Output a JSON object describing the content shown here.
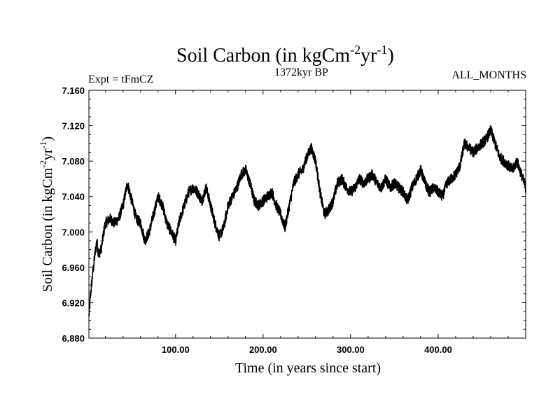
{
  "chart_data": {
    "type": "line",
    "title_main": "Soil Carbon (in kgCm",
    "title_sup1": "-2",
    "title_mid": "yr",
    "title_sup2": "-1",
    "title_end": ")",
    "subtitle": "1372kyr BP",
    "left_label": "Expt = tFmCZ",
    "right_label": "ALL_MONTHS",
    "xlabel": "Time (in years since start)",
    "ylabel_main": "Soil Carbon (in kgCm",
    "ylabel_sup1": "-2",
    "ylabel_mid": "yr",
    "ylabel_sup2": "-1",
    "ylabel_end": ")",
    "xlim": [
      1,
      500
    ],
    "ylim": [
      6.88,
      7.16
    ],
    "x_ticks": [
      100,
      200,
      300,
      400
    ],
    "x_tick_labels": [
      "100.00",
      "200.00",
      "300.00",
      "400.00"
    ],
    "y_ticks": [
      6.88,
      6.92,
      6.96,
      7.0,
      7.04,
      7.08,
      7.12,
      7.16
    ],
    "y_tick_labels": [
      "6.880",
      "6.920",
      "6.960",
      "7.000",
      "7.040",
      "7.080",
      "7.120",
      "7.160"
    ],
    "grid": false,
    "series": [
      {
        "name": "Soil Carbon",
        "color": "#000000",
        "x": [
          1,
          3,
          5,
          8,
          10,
          12,
          15,
          18,
          20,
          25,
          30,
          35,
          40,
          45,
          50,
          55,
          60,
          65,
          70,
          75,
          80,
          85,
          90,
          95,
          100,
          105,
          110,
          115,
          120,
          125,
          130,
          135,
          140,
          145,
          150,
          155,
          160,
          165,
          170,
          175,
          180,
          185,
          190,
          195,
          200,
          205,
          210,
          215,
          220,
          225,
          230,
          235,
          240,
          245,
          250,
          255,
          260,
          265,
          270,
          275,
          280,
          285,
          290,
          295,
          300,
          305,
          310,
          315,
          320,
          325,
          330,
          335,
          340,
          345,
          350,
          355,
          360,
          365,
          370,
          375,
          380,
          385,
          390,
          395,
          400,
          405,
          410,
          415,
          420,
          425,
          430,
          435,
          440,
          445,
          450,
          455,
          460,
          465,
          470,
          475,
          480,
          485,
          490,
          495,
          500
        ],
        "values": [
          6.905,
          6.93,
          6.95,
          6.975,
          6.99,
          6.975,
          6.98,
          7.0,
          7.01,
          7.015,
          7.01,
          7.015,
          7.03,
          7.055,
          7.035,
          7.015,
          7.01,
          6.99,
          7.0,
          7.02,
          7.04,
          7.03,
          7.01,
          7.0,
          6.99,
          7.015,
          7.03,
          7.045,
          7.05,
          7.045,
          7.035,
          7.05,
          7.03,
          7.01,
          6.995,
          7.005,
          7.03,
          7.04,
          7.05,
          7.065,
          7.07,
          7.055,
          7.035,
          7.03,
          7.035,
          7.04,
          7.045,
          7.03,
          7.02,
          7.005,
          7.03,
          7.055,
          7.065,
          7.07,
          7.085,
          7.095,
          7.08,
          7.045,
          7.02,
          7.025,
          7.035,
          7.055,
          7.06,
          7.05,
          7.045,
          7.05,
          7.06,
          7.055,
          7.06,
          7.065,
          7.055,
          7.05,
          7.06,
          7.05,
          7.055,
          7.05,
          7.045,
          7.035,
          7.05,
          7.06,
          7.07,
          7.055,
          7.045,
          7.05,
          7.045,
          7.04,
          7.055,
          7.06,
          7.065,
          7.075,
          7.1,
          7.095,
          7.09,
          7.095,
          7.1,
          7.105,
          7.115,
          7.1,
          7.085,
          7.08,
          7.075,
          7.07,
          7.08,
          7.065,
          7.05
        ]
      }
    ]
  }
}
